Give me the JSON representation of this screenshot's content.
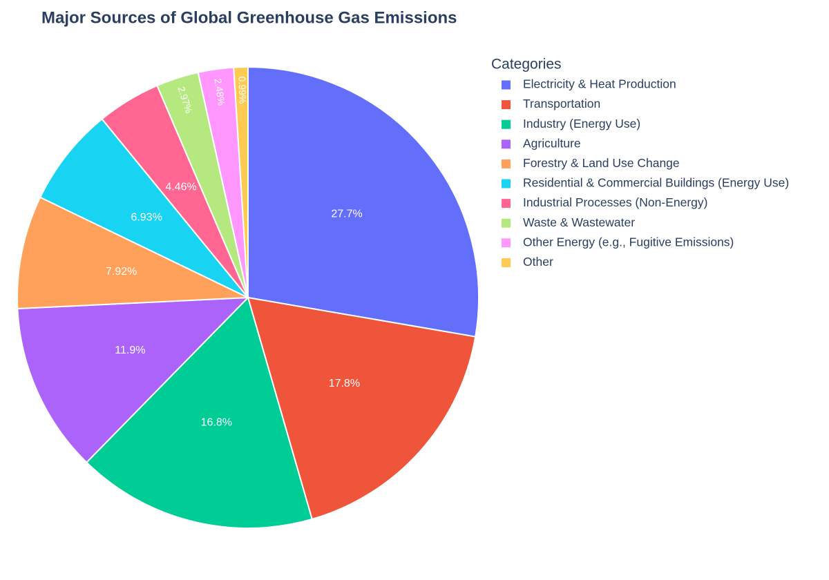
{
  "chart_data": {
    "type": "pie",
    "title": "Major Sources of Global Greenhouse Gas Emissions",
    "legend_title": "Categories",
    "legend_position": "right",
    "categories": [
      "Electricity & Heat Production",
      "Transportation",
      "Industry (Energy Use)",
      "Agriculture",
      "Forestry & Land Use Change",
      "Residential & Commercial Buildings (Energy Use)",
      "Industrial Processes (Non-Energy)",
      "Waste & Wastewater",
      "Other Energy (e.g., Fugitive Emissions)",
      "Other"
    ],
    "values": [
      27.7,
      17.8,
      16.8,
      11.9,
      7.92,
      6.93,
      4.46,
      2.97,
      2.48,
      0.99
    ],
    "value_labels": [
      "27.7%",
      "17.8%",
      "16.8%",
      "11.9%",
      "7.92%",
      "6.93%",
      "4.46%",
      "2.97%",
      "2.48%",
      "0.99%"
    ],
    "colors": [
      "#636efa",
      "#ef553b",
      "#00cc96",
      "#ab63fa",
      "#ffa15a",
      "#19d3f3",
      "#ff6692",
      "#b6e880",
      "#ff97ff",
      "#fecb52"
    ]
  }
}
